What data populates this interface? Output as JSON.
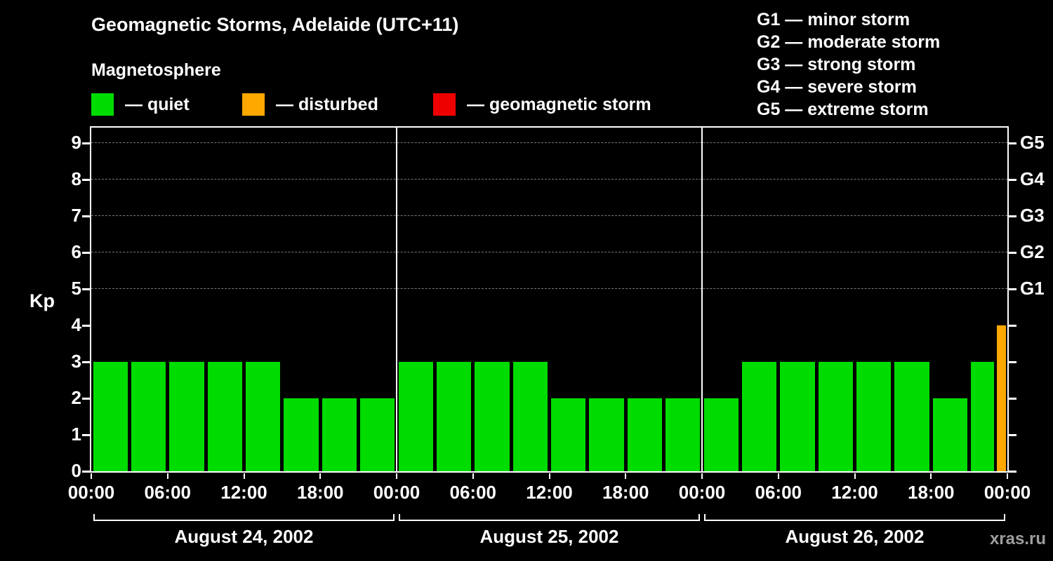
{
  "chart_data": {
    "type": "bar",
    "title": "Geomagnetic Storms, Adelaide (UTC+11)",
    "subtitle": "Magnetosphere",
    "ylabel": "Kp",
    "ylim": [
      0,
      9.5
    ],
    "y_ticks": [
      0,
      1,
      2,
      3,
      4,
      5,
      6,
      7,
      8,
      9
    ],
    "gridlines_kp": [
      5,
      6,
      7,
      8,
      9
    ],
    "right_axis_labels": [
      {
        "kp": 5,
        "label": "G1"
      },
      {
        "kp": 6,
        "label": "G2"
      },
      {
        "kp": 7,
        "label": "G3"
      },
      {
        "kp": 8,
        "label": "G4"
      },
      {
        "kp": 9,
        "label": "G5"
      }
    ],
    "time_ticks_per_day": [
      "00:00",
      "06:00",
      "12:00",
      "18:00"
    ],
    "end_time_tick": "00:00",
    "days": [
      {
        "date": "August 24, 2002",
        "kp": [
          3,
          3,
          3,
          3,
          3,
          2,
          2,
          2
        ],
        "status": [
          "quiet",
          "quiet",
          "quiet",
          "quiet",
          "quiet",
          "quiet",
          "quiet",
          "quiet"
        ]
      },
      {
        "date": "August 25, 2002",
        "kp": [
          3,
          3,
          3,
          3,
          2,
          2,
          2,
          2
        ],
        "status": [
          "quiet",
          "quiet",
          "quiet",
          "quiet",
          "quiet",
          "quiet",
          "quiet",
          "quiet"
        ]
      },
      {
        "date": "August 26, 2002",
        "kp": [
          2,
          3,
          3,
          3,
          3,
          3,
          2,
          3
        ],
        "status": [
          "quiet",
          "quiet",
          "quiet",
          "quiet",
          "quiet",
          "quiet",
          "quiet",
          "quiet"
        ]
      }
    ],
    "current_interval_bar": {
      "kp": 4,
      "status": "disturbed"
    }
  },
  "legend": {
    "items": [
      {
        "status": "quiet",
        "label": "— quiet"
      },
      {
        "status": "disturbed",
        "label": "— disturbed"
      },
      {
        "status": "storm",
        "label": "— geomagnetic storm"
      }
    ]
  },
  "storm_scale": [
    "G1 — minor storm",
    "G2 — moderate storm",
    "G3 — strong storm",
    "G4 — severe storm",
    "G5 — extreme storm"
  ],
  "colors": {
    "quiet": "#00dc00",
    "disturbed": "#ffa800",
    "storm": "#ee0000",
    "background": "#000000",
    "axis": "#ffffff",
    "grid": "#7a7a7a",
    "watermark": "#9e9e9e"
  },
  "watermark": "xras.ru"
}
